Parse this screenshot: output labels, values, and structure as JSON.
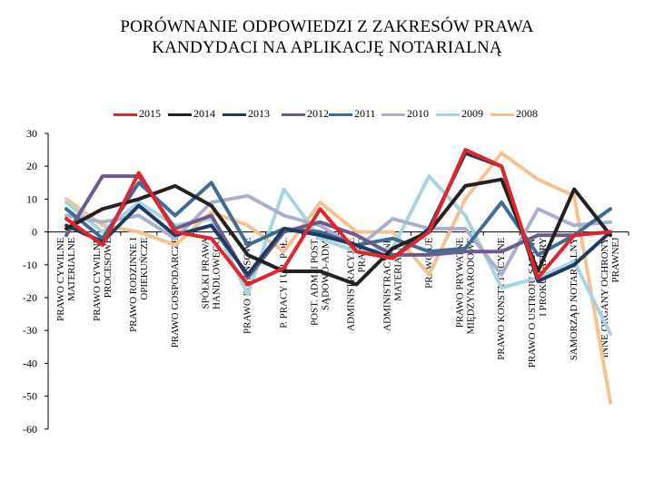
{
  "chart_data": {
    "type": "line",
    "title_lines": [
      "PORÓWNANIE ODPOWIEDZI Z ZAKRESÓW PRAWA",
      "KANDYDACI NA APLIKACJĘ NOTARIALNĄ"
    ],
    "ylim": [
      -60,
      30
    ],
    "yticks": [
      "30",
      "20",
      "10",
      "0",
      "-10",
      "-20",
      "-30",
      "-40",
      "-50",
      "-60"
    ],
    "ytick_values": [
      30,
      20,
      10,
      0,
      -10,
      -20,
      -30,
      -40,
      -50,
      -60
    ],
    "grid": false,
    "legend_position": "top",
    "categories": [
      [
        "PRAWO CYWILNE",
        "MATERIALNE"
      ],
      [
        "PRAWO CYWILNE",
        "PROCESOWE"
      ],
      [
        "PRAWO RODZINNE I",
        "OPIEKUŃCZE"
      ],
      [
        "PRAWO GOSPODARCZE"
      ],
      [
        "SPÓŁKI PRAWA",
        "HANDLOWEGO"
      ],
      [
        "PRAWO FINANSOWE"
      ],
      [
        "P. PRACY I UB. POŁ."
      ],
      [
        "POST. ADM. I POST.",
        "SĄDOWO-ADM."
      ],
      [
        "ADMINISTRACYJNE",
        "PRAWO"
      ],
      [
        "ADMINISTRACYJNE",
        "MATERIALNE"
      ],
      [
        "PRAWO UE"
      ],
      [
        "PRAWO PRYWATNE",
        "MIĘDZYNARODOWE"
      ],
      [
        "PRAWO KONSTYTUCYJNE"
      ],
      [
        "PRAWO O USTROJU SĄDÓW",
        "I PROKURATURY"
      ],
      [
        "SAMORZĄD NOTARIALNY"
      ],
      [
        "INNE ORGANY OCHRONY",
        "PRAWNEJ"
      ]
    ],
    "series": [
      {
        "name": "2015",
        "color": "#e0262c",
        "values": [
          4,
          -4,
          18,
          0,
          -2,
          -16,
          -11,
          7,
          -6,
          -8,
          0,
          25,
          20,
          -14,
          -1,
          0
        ]
      },
      {
        "name": "2014",
        "color": "#222222",
        "values": [
          1,
          7,
          10,
          14,
          8,
          -7,
          -12,
          -12,
          -16,
          -5,
          0,
          14,
          16,
          -12,
          13,
          -1
        ]
      },
      {
        "name": "2013",
        "color": "#1f3a5f",
        "values": [
          2,
          -3,
          8,
          -1,
          2,
          -13,
          1,
          -1,
          -4,
          -8,
          1,
          24,
          20,
          -15,
          -10,
          0
        ]
      },
      {
        "name": "2012",
        "color": "#6e5b8c",
        "values": [
          -1,
          17,
          17,
          1,
          5,
          -14,
          0,
          3,
          -1,
          -7,
          -7,
          -6,
          -6,
          -1,
          -1,
          0
        ]
      },
      {
        "name": "2011",
        "color": "#3e6c98",
        "values": [
          7,
          -2,
          15,
          5,
          15,
          -4,
          1,
          0,
          -4,
          -2,
          -6,
          -5,
          9,
          -7,
          -1,
          7
        ]
      },
      {
        "name": "2010",
        "color": "#aab0cc",
        "values": [
          5,
          3,
          5,
          -2,
          9,
          11,
          5,
          2,
          -5,
          4,
          1,
          1,
          -13,
          7,
          2,
          3
        ]
      },
      {
        "name": "2009",
        "color": "#a8d4e2",
        "values": [
          9,
          0,
          9,
          2,
          4,
          -19,
          13,
          -2,
          -6,
          -5,
          17,
          5,
          -17,
          -14,
          -9,
          -31
        ]
      },
      {
        "name": "2008",
        "color": "#f5c290",
        "values": [
          10,
          2,
          0,
          -4,
          6,
          2,
          -6,
          9,
          0,
          0,
          -13,
          10,
          24,
          16,
          11,
          -52
        ]
      }
    ]
  }
}
